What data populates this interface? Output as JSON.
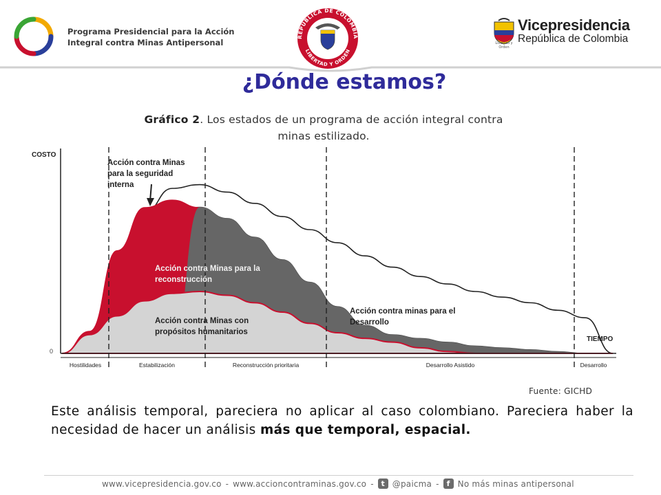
{
  "header": {
    "org_line1": "Programa Presidencial para la Acción",
    "org_line2": "Integral contra Minas Antipersonal",
    "seal_top_text": "REPÚBLICA DE COLOMBIA",
    "seal_bottom_text": "LIBERTAD Y ORDEN",
    "vp_title": "Vicepresidencia",
    "vp_subtitle": "República de Colombia",
    "vp_tagline": "Libertad y Orden"
  },
  "title": "¿Dónde estamos?",
  "caption": {
    "bold": "Gráfico 2",
    "rest": ". Los estados de un programa de acción integral contra minas estilizado."
  },
  "chart_data": {
    "type": "area",
    "ylabel": "COSTO",
    "xlabel": "TIEMPO",
    "y_origin_label": "0",
    "phases": [
      "Hostilidades",
      "Estabilización",
      "Reconstrucción prioritaria",
      "Desarrollo Asistido",
      "Desarrollo"
    ],
    "x": [
      0,
      5,
      10,
      15,
      20,
      25,
      30,
      35,
      40,
      45,
      50,
      55,
      60,
      65,
      70,
      75,
      80,
      85,
      90,
      95,
      100
    ],
    "series": [
      {
        "name": "Acción contra minas para el Desarrollo",
        "values": [
          0,
          10,
          40,
          75,
          88,
          90,
          86,
          80,
          73,
          66,
          59,
          52,
          46,
          41,
          37,
          33,
          30,
          27,
          23,
          19,
          0
        ]
      },
      {
        "name": "Acción contra Minas para la reconstrucción",
        "values": [
          0,
          8,
          35,
          64,
          76,
          78,
          72,
          62,
          50,
          38,
          25,
          15,
          10,
          8,
          6,
          4,
          3,
          2,
          1,
          0,
          0
        ]
      },
      {
        "name": "Acción contra Minas para la seguridad interna",
        "values": [
          0,
          12,
          55,
          78,
          82,
          78,
          70,
          58,
          45,
          33,
          22,
          14,
          9,
          7,
          5,
          3,
          2,
          1,
          0,
          0,
          0
        ]
      },
      {
        "name": "Acción contra Minas con propósitos humanitarios",
        "values": [
          0,
          10,
          20,
          28,
          32,
          33,
          31,
          27,
          22,
          16,
          11,
          8,
          6,
          3,
          1,
          0,
          0,
          0,
          0,
          0,
          0
        ]
      }
    ],
    "colors": {
      "desarrollo": "#ffffff",
      "reconstruccion": "#666666",
      "seguridad": "#c8102e",
      "humanitario": "#d4d4d4"
    },
    "annotations": {
      "seguridad": [
        "Acción contra Minas",
        "para la seguridad",
        "interna"
      ],
      "reconstruccion": [
        "Acción contra Minas para la",
        "reconstrucción"
      ],
      "humanitario": [
        "Acción contra Minas con",
        "propósitos humanitarios"
      ],
      "desarrollo": [
        "Acción contra minas para el",
        "Desarrollo"
      ]
    }
  },
  "source": "Fuente: GICHD",
  "body": {
    "text": "Este análisis temporal, pareciera no aplicar al caso colombiano. Pareciera haber la necesidad de hacer un análisis ",
    "bold": "más que temporal, espacial."
  },
  "footer": {
    "site1": "www.vicepresidencia.gov.co",
    "sep": "-",
    "site2": "www.accioncontraminas.gov.co",
    "twitter": "@paicma",
    "facebook": "No más minas antipersonal",
    "twitter_icon": "twitter-icon",
    "facebook_icon": "facebook-icon"
  }
}
